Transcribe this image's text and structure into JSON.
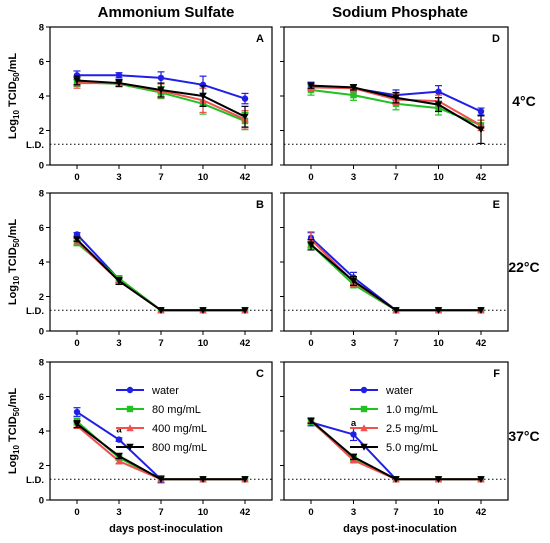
{
  "column_titles": [
    "Ammonium Sulfate",
    "Sodium Phosphate"
  ],
  "row_titles": [
    "4°C",
    "22°C",
    "37°C"
  ],
  "ld_label": "L.D.",
  "ylabel_parts": {
    "pre": "Log",
    "sub1": "10",
    "mid": " TCID",
    "sub2": "50",
    "post": "/mL"
  },
  "xlabel": "days post-inoculation",
  "colors": {
    "water": "#1f1fe6",
    "s1": "#22c122",
    "s2": "#f05050",
    "s3": "#000000"
  },
  "chart_data": [
    {
      "type": "line",
      "panel": "A",
      "col": 0,
      "row": 0,
      "categories": [
        "0",
        "3",
        "7",
        "10",
        "42"
      ],
      "ylim": [
        0,
        8
      ],
      "yticks": [
        0,
        2,
        4,
        6,
        8
      ],
      "limit_of_detection": 1.2,
      "series": [
        {
          "values": [
            5.2,
            5.2,
            5.05,
            4.65,
            3.85
          ],
          "errors": [
            0.25,
            0.15,
            0.35,
            0.5,
            0.3
          ]
        },
        {
          "values": [
            4.8,
            4.7,
            4.2,
            3.55,
            2.55
          ],
          "errors": [
            0.25,
            0.15,
            0.35,
            0.6,
            0.5
          ]
        },
        {
          "values": [
            4.75,
            4.75,
            4.3,
            3.75,
            2.65
          ],
          "errors": [
            0.3,
            0.2,
            0.4,
            0.7,
            0.5
          ]
        },
        {
          "values": [
            4.9,
            4.75,
            4.35,
            4.0,
            2.8
          ],
          "errors": [
            0.25,
            0.2,
            0.4,
            0.6,
            0.6
          ]
        }
      ]
    },
    {
      "type": "line",
      "panel": "D",
      "col": 1,
      "row": 0,
      "categories": [
        "0",
        "3",
        "7",
        "10",
        "42"
      ],
      "ylim": [
        0,
        8
      ],
      "yticks": [
        0,
        2,
        4,
        6,
        8
      ],
      "limit_of_detection": 1.2,
      "series": [
        {
          "values": [
            4.6,
            4.45,
            4.05,
            4.25,
            3.1
          ],
          "errors": [
            0.2,
            0.2,
            0.3,
            0.35,
            0.2
          ]
        },
        {
          "values": [
            4.35,
            4.05,
            3.55,
            3.3,
            2.3
          ],
          "errors": [
            0.3,
            0.3,
            0.35,
            0.4,
            0.3
          ]
        },
        {
          "values": [
            4.5,
            4.45,
            3.8,
            3.7,
            2.3
          ],
          "errors": [
            0.2,
            0.2,
            0.3,
            0.35,
            0.3
          ]
        },
        {
          "values": [
            4.6,
            4.5,
            3.9,
            3.5,
            2.05
          ],
          "errors": [
            0.15,
            0.15,
            0.3,
            0.4,
            0.8
          ]
        }
      ]
    },
    {
      "type": "line",
      "panel": "B",
      "col": 0,
      "row": 1,
      "categories": [
        "0",
        "3",
        "7",
        "10",
        "42"
      ],
      "ylim": [
        0,
        8
      ],
      "yticks": [
        0,
        2,
        4,
        6,
        8
      ],
      "limit_of_detection": 1.2,
      "series": [
        {
          "values": [
            5.6,
            3.0,
            1.2,
            1.2,
            1.2
          ],
          "errors": [
            0.1,
            0.2,
            0,
            0,
            0
          ]
        },
        {
          "values": [
            5.1,
            3.05,
            1.2,
            1.2,
            1.2
          ],
          "errors": [
            0.15,
            0.15,
            0,
            0,
            0
          ]
        },
        {
          "values": [
            5.2,
            2.9,
            1.2,
            1.2,
            1.2
          ],
          "errors": [
            0.15,
            0.2,
            0,
            0,
            0
          ]
        },
        {
          "values": [
            5.3,
            2.9,
            1.2,
            1.2,
            1.2
          ],
          "errors": [
            0.1,
            0.2,
            0,
            0,
            0
          ]
        }
      ]
    },
    {
      "type": "line",
      "panel": "E",
      "col": 1,
      "row": 1,
      "categories": [
        "0",
        "3",
        "7",
        "10",
        "42"
      ],
      "ylim": [
        0,
        8
      ],
      "yticks": [
        0,
        2,
        4,
        6,
        8
      ],
      "limit_of_detection": 1.2,
      "series": [
        {
          "values": [
            5.4,
            3.1,
            1.2,
            1.2,
            1.2
          ],
          "errors": [
            0.3,
            0.3,
            0,
            0,
            0
          ]
        },
        {
          "values": [
            5.0,
            2.7,
            1.2,
            1.2,
            1.2
          ],
          "errors": [
            0.2,
            0.2,
            0,
            0,
            0
          ]
        },
        {
          "values": [
            5.3,
            2.85,
            1.2,
            1.2,
            1.2
          ],
          "errors": [
            0.45,
            0.25,
            0,
            0,
            0
          ]
        },
        {
          "values": [
            5.0,
            2.9,
            1.2,
            1.2,
            1.2
          ],
          "errors": [
            0.3,
            0.25,
            0,
            0,
            0
          ]
        }
      ]
    },
    {
      "type": "line",
      "panel": "C",
      "col": 0,
      "row": 2,
      "categories": [
        "0",
        "3",
        "7",
        "10",
        "42"
      ],
      "ylim": [
        0,
        8
      ],
      "yticks": [
        0,
        2,
        4,
        6,
        8
      ],
      "limit_of_detection": 1.2,
      "annotation": {
        "text": "a",
        "category": "3",
        "y": 3.9
      },
      "legend_labels": [
        "water",
        "80 mg/mL",
        "400 mg/mL",
        "800 mg/mL"
      ],
      "series": [
        {
          "name": "water",
          "values": [
            5.1,
            3.5,
            1.2,
            1.2,
            1.2
          ],
          "errors": [
            0.25,
            0.1,
            0.2,
            0,
            0
          ]
        },
        {
          "name": "80 mg/mL",
          "values": [
            4.55,
            2.45,
            1.2,
            1.2,
            1.2
          ],
          "errors": [
            0.2,
            0.15,
            0,
            0,
            0
          ]
        },
        {
          "name": "400 mg/mL",
          "values": [
            4.3,
            2.25,
            1.2,
            1.2,
            1.2
          ],
          "errors": [
            0.15,
            0.15,
            0,
            0,
            0
          ]
        },
        {
          "name": "800 mg/mL",
          "values": [
            4.4,
            2.55,
            1.2,
            1.2,
            1.2
          ],
          "errors": [
            0.2,
            0.15,
            0,
            0,
            0
          ]
        }
      ]
    },
    {
      "type": "line",
      "panel": "F",
      "col": 1,
      "row": 2,
      "categories": [
        "0",
        "3",
        "7",
        "10",
        "42"
      ],
      "ylim": [
        0,
        8
      ],
      "yticks": [
        0,
        2,
        4,
        6,
        8
      ],
      "limit_of_detection": 1.2,
      "annotation": {
        "text": "a",
        "category": "3",
        "y": 4.3
      },
      "legend_labels": [
        "water",
        "1.0 mg/mL",
        "2.5 mg/mL",
        "5.0 mg/mL"
      ],
      "series": [
        {
          "name": "water",
          "values": [
            4.5,
            3.8,
            1.2,
            1.2,
            1.2
          ],
          "errors": [
            0.2,
            0.35,
            0,
            0,
            0
          ]
        },
        {
          "name": "1.0 mg/mL",
          "values": [
            4.55,
            2.4,
            1.2,
            1.2,
            1.2
          ],
          "errors": [
            0.15,
            0.15,
            0,
            0,
            0
          ]
        },
        {
          "name": "2.5 mg/mL",
          "values": [
            4.6,
            2.3,
            1.2,
            1.2,
            1.2
          ],
          "errors": [
            0.15,
            0.15,
            0,
            0,
            0
          ]
        },
        {
          "name": "5.0 mg/mL",
          "values": [
            4.6,
            2.5,
            1.2,
            1.2,
            1.2
          ],
          "errors": [
            0.15,
            0.15,
            0,
            0,
            0
          ]
        }
      ]
    }
  ]
}
